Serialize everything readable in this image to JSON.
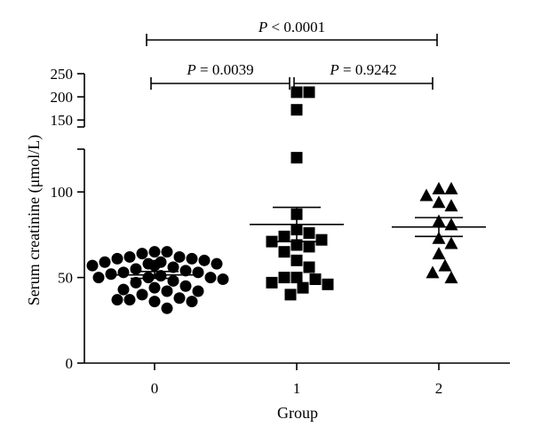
{
  "chart_data": {
    "type": "scatter",
    "xlabel": "Group",
    "ylabel": "Serum creatinine (μmol/L)",
    "categories": [
      "0",
      "1",
      "2"
    ],
    "y_axis": {
      "broken": true,
      "lower_range": [
        0,
        125
      ],
      "lower_ticks": [
        "0",
        "50",
        "100"
      ],
      "upper_range": [
        135,
        250
      ],
      "upper_ticks": [
        "150",
        "200",
        "250"
      ]
    },
    "series": [
      {
        "category": "0",
        "marker": "circle",
        "values": [
          65,
          65,
          64,
          62,
          62,
          61,
          61,
          60,
          59,
          59,
          58,
          58,
          57,
          57,
          56,
          55,
          54,
          53,
          53,
          52,
          51,
          50,
          50,
          50,
          49,
          48,
          47,
          45,
          44,
          43,
          42,
          42,
          40,
          38,
          37,
          37,
          36,
          36,
          32
        ],
        "mean": 51.5,
        "sem_low": 49.5,
        "sem_high": 53.5
      },
      {
        "category": "1",
        "marker": "square",
        "values": [
          210,
          210,
          172,
          120,
          87,
          78,
          76,
          74,
          72,
          71,
          69,
          68,
          65,
          60,
          56,
          50,
          50,
          49,
          47,
          46,
          44,
          40
        ],
        "mean": 81,
        "sem_low": 71,
        "sem_high": 91
      },
      {
        "category": "2",
        "marker": "triangle",
        "values": [
          102,
          102,
          98,
          94,
          92,
          83,
          81,
          73,
          70,
          64,
          57,
          53,
          50
        ],
        "mean": 79.5,
        "sem_low": 74,
        "sem_high": 85
      }
    ],
    "comparisons": [
      {
        "from": "0",
        "to": "2",
        "label": "P < 0.0001",
        "prefix": "P",
        "op": "<",
        "value": "0.0001"
      },
      {
        "from": "0",
        "to": "1",
        "label": "P = 0.0039",
        "prefix": "P",
        "op": "=",
        "value": "0.0039"
      },
      {
        "from": "1",
        "to": "2",
        "label": "P = 0.9242",
        "prefix": "P",
        "op": "=",
        "value": "0.9242"
      }
    ]
  }
}
